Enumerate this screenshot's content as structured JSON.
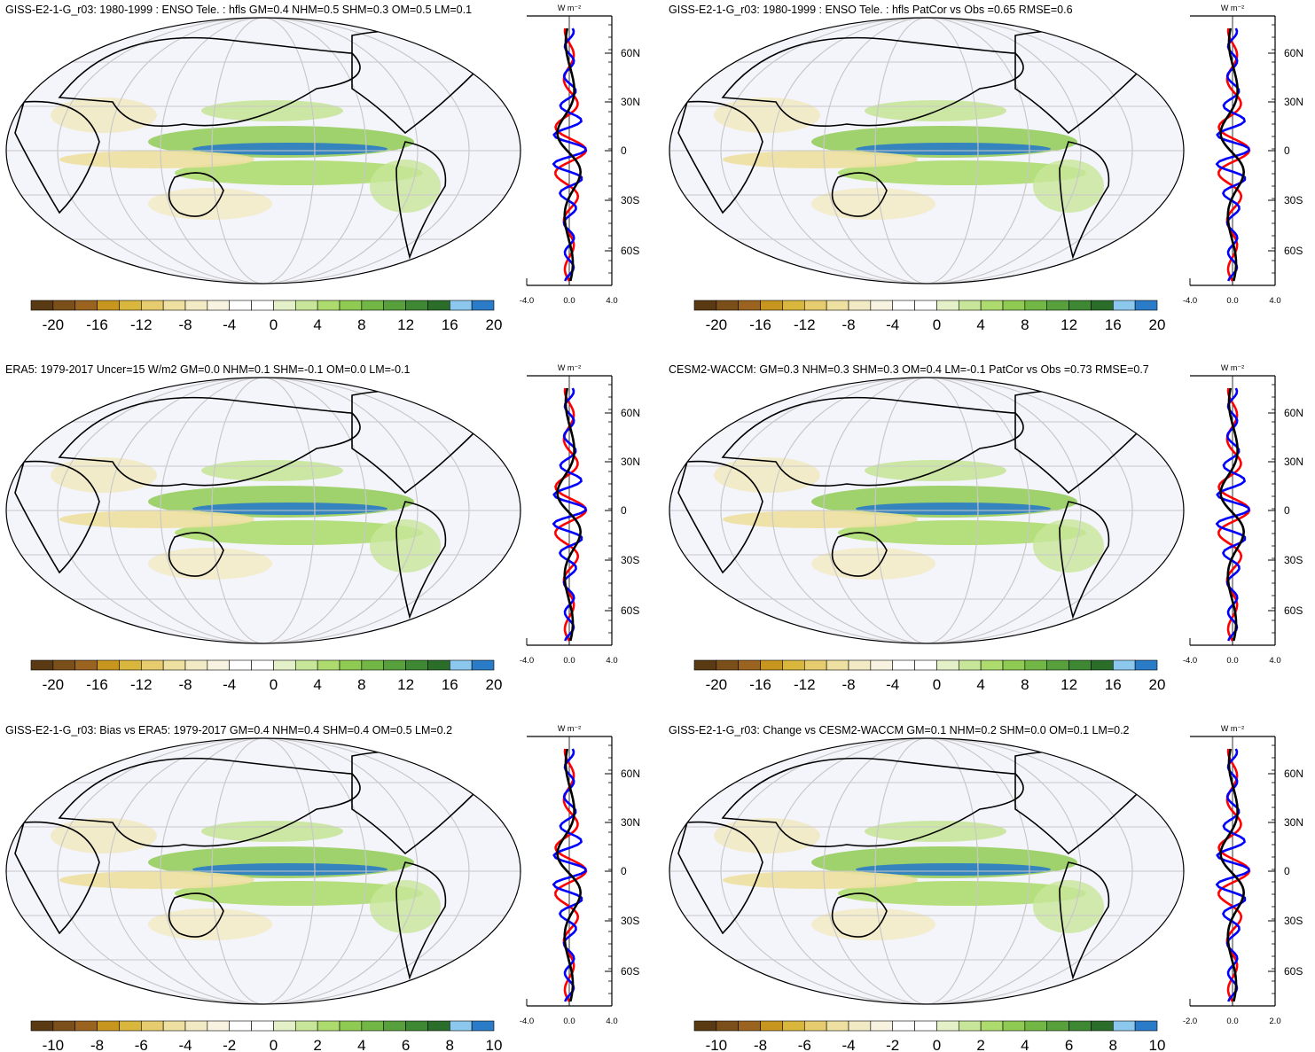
{
  "panels": [
    {
      "id": "p1",
      "title": "GISS-E2-1-G_r03: 1980-1999 : ENSO Tele. : hfls GM=0.4 NHM=0.5 SHM=0.3 OM=0.5 LM=0.1",
      "colorbar_ticks": [
        "-20",
        "-16",
        "-12",
        "-8",
        "-4",
        "0",
        "4",
        "8",
        "12",
        "16",
        "20"
      ],
      "zonal_xticks": [
        "-4.0",
        "0.0",
        "4.0"
      ]
    },
    {
      "id": "p2",
      "title": "GISS-E2-1-G_r03: 1980-1999 : ENSO Tele. : hfls PatCor vs Obs =0.65 RMSE=0.6",
      "colorbar_ticks": [
        "-20",
        "-16",
        "-12",
        "-8",
        "-4",
        "0",
        "4",
        "8",
        "12",
        "16",
        "20"
      ],
      "zonal_xticks": [
        "-4.0",
        "0.0",
        "4.0"
      ]
    },
    {
      "id": "p3",
      "title": "ERA5: 1979-2017 Uncer=15 W/m2 GM=0.0 NHM=0.1 SHM=-0.1 OM=0.0 LM=-0.1",
      "colorbar_ticks": [
        "-20",
        "-16",
        "-12",
        "-8",
        "-4",
        "0",
        "4",
        "8",
        "12",
        "16",
        "20"
      ],
      "zonal_xticks": [
        "-4.0",
        "0.0",
        "4.0"
      ]
    },
    {
      "id": "p4",
      "title": "CESM2-WACCM: GM=0.3 NHM=0.3 SHM=0.3 OM=0.4 LM=-0.1 PatCor vs Obs =0.73 RMSE=0.7",
      "colorbar_ticks": [
        "-20",
        "-16",
        "-12",
        "-8",
        "-4",
        "0",
        "4",
        "8",
        "12",
        "16",
        "20"
      ],
      "zonal_xticks": [
        "-4.0",
        "0.0",
        "4.0"
      ]
    },
    {
      "id": "p5",
      "title": "GISS-E2-1-G_r03: Bias vs ERA5: 1979-2017 GM=0.4 NHM=0.4 SHM=0.4 OM=0.5 LM=0.2",
      "colorbar_ticks": [
        "-10",
        "-8",
        "-6",
        "-4",
        "-2",
        "0",
        "2",
        "4",
        "6",
        "8",
        "10"
      ],
      "zonal_xticks": [
        "-4.0",
        "0.0",
        "4.0"
      ]
    },
    {
      "id": "p6",
      "title": "GISS-E2-1-G_r03: Change vs CESM2-WACCM GM=0.1 NHM=0.2 SHM=0.0 OM=0.1 LM=0.2",
      "colorbar_ticks": [
        "-10",
        "-8",
        "-6",
        "-4",
        "-2",
        "0",
        "2",
        "4",
        "6",
        "8",
        "10"
      ],
      "zonal_xticks": [
        "-2.0",
        "0.0",
        "2.0"
      ]
    }
  ],
  "zonal_unit": "W m⁻²",
  "lat_ticks": [
    "60N",
    "30N",
    "0",
    "30S",
    "60S"
  ],
  "palette": [
    "#5a3a12",
    "#7a4f1a",
    "#9a6420",
    "#c8961e",
    "#d9b63c",
    "#e6cc6e",
    "#ede0a0",
    "#f2eac4",
    "#f7f3e0",
    "#ffffff",
    "#ffffff",
    "#e4f1c8",
    "#c8e69a",
    "#aedb6e",
    "#8fca52",
    "#72b646",
    "#57a03c",
    "#3e8834",
    "#2a6e2a",
    "#8cc7ee",
    "#2a7bc8"
  ],
  "line_colors": {
    "model": "#ff0000",
    "obs": "#0000ff",
    "mean": "#000000"
  }
}
